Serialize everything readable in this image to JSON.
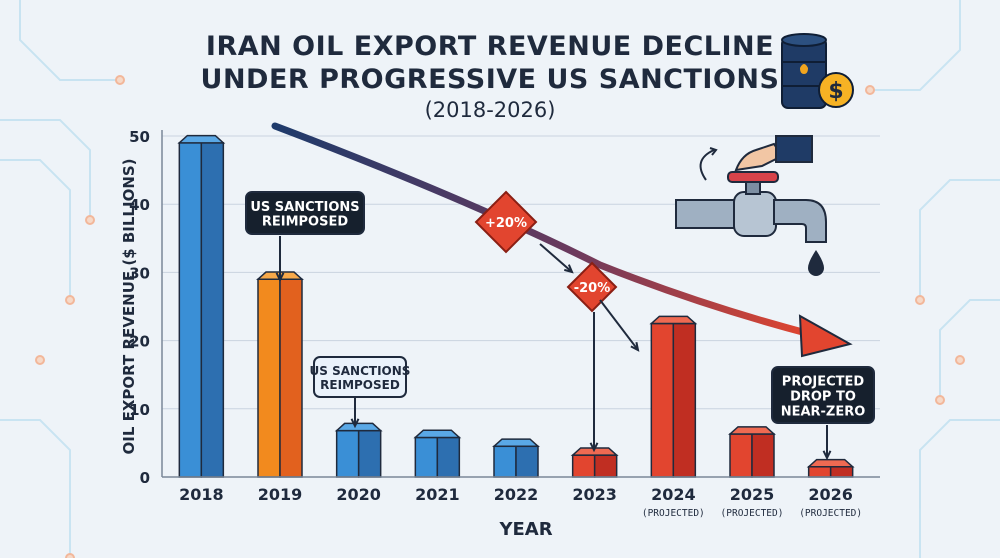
{
  "title_lines": [
    "IRAN OIL EXPORT REVENUE DECLINE",
    "UNDER PROGRESSIVE US SANCTIONS"
  ],
  "subtitle": "(2018-2026)",
  "colors": {
    "blue": "#3a8fd6",
    "orange": "#f28a1e",
    "red": "#e2452f",
    "text": "#1f2a3d",
    "grid": "#c9d3df",
    "annotation_dark_bg": "#16202d",
    "annotation_light_bg": "#eaf2fb"
  },
  "icons": [
    "oil-barrel-dollar-icon",
    "faucet-with-drip-icon"
  ],
  "chart_data": {
    "type": "bar",
    "title": "IRAN OIL EXPORT REVENUE DECLINE UNDER PROGRESSIVE US SANCTIONS (2018-2026)",
    "xlabel": "YEAR",
    "ylabel": "OIL EXPORT REVENUE ($ BILLIONS)",
    "ylim": [
      0,
      50
    ],
    "yticks": [
      0,
      10,
      20,
      30,
      40,
      50
    ],
    "grid": true,
    "categories": [
      "2018",
      "2019",
      "2020",
      "2021",
      "2022",
      "2023",
      "2024",
      "2025",
      "2026"
    ],
    "category_sublabels": [
      "",
      "",
      "",
      "",
      "",
      "",
      "(PROJECTED)",
      "(PROJECTED)",
      "(PROJECTED)"
    ],
    "values": [
      49,
      29,
      6.8,
      5.8,
      4.5,
      3.2,
      22.5,
      6.3,
      1.5
    ],
    "bar_colors": [
      "blue",
      "orange",
      "blue",
      "blue",
      "blue",
      "red",
      "red",
      "red",
      "red"
    ],
    "annotations": [
      {
        "text": "US SANCTIONS\nREIMPOSED",
        "style": "dark",
        "target": "2019"
      },
      {
        "text": "US SANCTIONS\nREIMPOSED",
        "style": "light",
        "target": "2020"
      },
      {
        "text": "+20%",
        "style": "diamond"
      },
      {
        "text": "-20%",
        "style": "diamond"
      },
      {
        "text": "PROJECTED\nDROP TO\nNEAR-ZERO",
        "style": "dark",
        "target": "2026"
      }
    ],
    "trend": "downward trend arrow across chart"
  }
}
